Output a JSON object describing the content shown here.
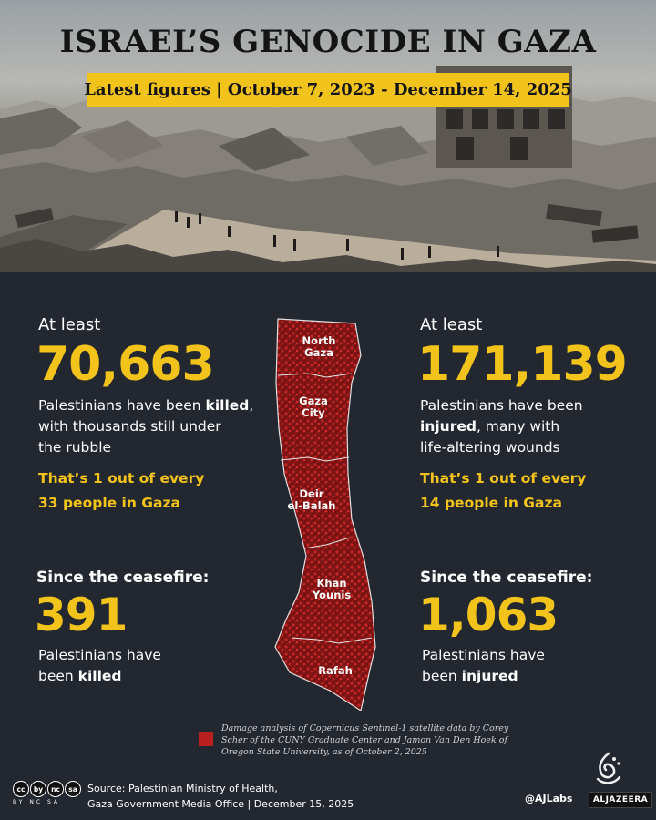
{
  "header": {
    "title": "ISRAEL’S GENOCIDE IN GAZA",
    "subtitle": "Latest figures | October 7, 2023 - December 14, 2025"
  },
  "killed": {
    "prefix": "At least",
    "number": "70,663",
    "desc_pre": "Palestinians have been ",
    "desc_bold": "killed",
    "desc_post": ",",
    "desc_line2": "with thousands still under",
    "desc_line3": "the rubble",
    "ratio_line1": "That’s 1 out of every",
    "ratio_line2": "33 people in Gaza"
  },
  "injured": {
    "prefix": "At least",
    "number": "171,139",
    "desc_line1": "Palestinians have been",
    "desc_bold": "injured",
    "desc_post": ", many with",
    "desc_line3": "life-altering wounds",
    "ratio_line1": "That’s 1 out of every",
    "ratio_line2": "14 people in Gaza"
  },
  "ceasefire_killed": {
    "heading": "Since the ceasefire:",
    "number": "391",
    "desc_line1": "Palestinians have",
    "desc_pre": "been ",
    "desc_bold": "killed"
  },
  "ceasefire_injured": {
    "heading": "Since the ceasefire:",
    "number": "1,063",
    "desc_line1": "Palestinians have",
    "desc_pre": "been ",
    "desc_bold": "injured"
  },
  "map": {
    "regions": [
      {
        "line1": "North",
        "line2": "Gaza"
      },
      {
        "line1": "Gaza",
        "line2": "City"
      },
      {
        "line1": "Deir",
        "line2": "el-Balah"
      },
      {
        "line1": "Khan",
        "line2": "Younis"
      },
      {
        "line1": "Rafah",
        "line2": ""
      }
    ],
    "damage_color": "#b81f1f"
  },
  "legend": {
    "text": "Damage analysis of Copernicus Sentinel-1 satellite data by  Corey Scher of the CUNY Graduate Center and Jamon Van Den Hoek of Oregon State University, as of  October 2, 2025"
  },
  "footer": {
    "license_icons": [
      "cc",
      "by",
      "nc",
      "sa"
    ],
    "license_sub": "BY NC SA",
    "source_line1": "Source:  Palestinian Ministry of Health,",
    "source_line2": "Gaza Government Media Office   |   December 15, 2025",
    "handle": "@AJLabs",
    "brand": "ALJAZEERA"
  },
  "colors": {
    "accent": "#f2c31b",
    "background": "#23272f"
  }
}
